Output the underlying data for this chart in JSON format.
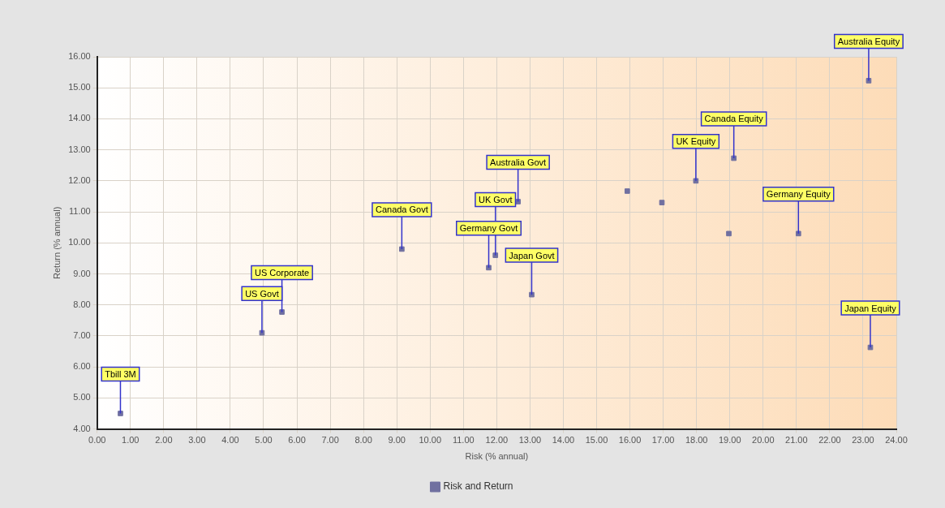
{
  "chart_data": {
    "type": "scatter",
    "xlabel": "Risk (% annual)",
    "ylabel": "Return (% annual)",
    "series": [
      {
        "name": "Risk and Return",
        "color": "#7070a0",
        "x": [
          0.7,
          4.95,
          5.55,
          9.15,
          11.76,
          11.96,
          12.64,
          13.05,
          15.92,
          16.96,
          17.98,
          19.12,
          18.97,
          21.06,
          23.17,
          23.22
        ],
        "values": [
          4.5,
          7.1,
          7.77,
          9.8,
          9.2,
          9.6,
          11.33,
          8.33,
          11.67,
          11.3,
          12.0,
          12.73,
          10.3,
          10.3,
          15.23,
          6.63
        ]
      }
    ],
    "annotations": [
      {
        "text": "Tbill 3M",
        "x": 0.7,
        "y": 4.5
      },
      {
        "text": "US Govt",
        "x": 4.95,
        "y": 7.1
      },
      {
        "text": "US Corporate",
        "x": 5.55,
        "y": 7.77
      },
      {
        "text": "Canada Govt",
        "x": 9.15,
        "y": 9.8
      },
      {
        "text": "Germany Govt",
        "x": 11.76,
        "y": 9.2
      },
      {
        "text": "UK Govt",
        "x": 11.96,
        "y": 9.6
      },
      {
        "text": "Australia Govt",
        "x": 12.64,
        "y": 11.33
      },
      {
        "text": "Japan Govt",
        "x": 13.05,
        "y": 8.33
      },
      {
        "text": "UK Equity",
        "x": 17.98,
        "y": 12.0
      },
      {
        "text": "Canada Equity",
        "x": 19.12,
        "y": 12.73
      },
      {
        "text": "Germany Equity",
        "x": 21.06,
        "y": 10.3
      },
      {
        "text": "Australia Equity",
        "x": 23.17,
        "y": 15.23
      },
      {
        "text": "Japan Equity",
        "x": 23.22,
        "y": 6.63
      }
    ],
    "xlim": [
      0,
      24
    ],
    "ylim": [
      4,
      16
    ],
    "xticks": [
      {
        "value": 0,
        "label": "0.00"
      },
      {
        "value": 1,
        "label": "1.00"
      },
      {
        "value": 2,
        "label": "2.00"
      },
      {
        "value": 3,
        "label": "3.00"
      },
      {
        "value": 4,
        "label": "4.00"
      },
      {
        "value": 5,
        "label": "5.00"
      },
      {
        "value": 6,
        "label": "6.00"
      },
      {
        "value": 7,
        "label": "7.00"
      },
      {
        "value": 8,
        "label": "8.00"
      },
      {
        "value": 9,
        "label": "9.00"
      },
      {
        "value": 10,
        "label": "10.00"
      },
      {
        "value": 11,
        "label": "11.00"
      },
      {
        "value": 12,
        "label": "12.00"
      },
      {
        "value": 13,
        "label": "13.00"
      },
      {
        "value": 14,
        "label": "14.00"
      },
      {
        "value": 15,
        "label": "15.00"
      },
      {
        "value": 16,
        "label": "16.00"
      },
      {
        "value": 17,
        "label": "17.00"
      },
      {
        "value": 18,
        "label": "18.00"
      },
      {
        "value": 19,
        "label": "19.00"
      },
      {
        "value": 20,
        "label": "20.00"
      },
      {
        "value": 21,
        "label": "21.00"
      },
      {
        "value": 22,
        "label": "22.00"
      },
      {
        "value": 23,
        "label": "23.00"
      },
      {
        "value": 24,
        "label": "24.00"
      }
    ],
    "yticks": [
      {
        "value": 4,
        "label": "4.00"
      },
      {
        "value": 5,
        "label": "5.00"
      },
      {
        "value": 6,
        "label": "6.00"
      },
      {
        "value": 7,
        "label": "7.00"
      },
      {
        "value": 8,
        "label": "8.00"
      },
      {
        "value": 9,
        "label": "9.00"
      },
      {
        "value": 10,
        "label": "10.00"
      },
      {
        "value": 11,
        "label": "11.00"
      },
      {
        "value": 12,
        "label": "12.00"
      },
      {
        "value": 13,
        "label": "13.00"
      },
      {
        "value": 14,
        "label": "14.00"
      },
      {
        "value": 15,
        "label": "15.00"
      },
      {
        "value": 16,
        "label": "16.00"
      }
    ],
    "grid": true,
    "legend": "bottom",
    "marker": "square"
  }
}
